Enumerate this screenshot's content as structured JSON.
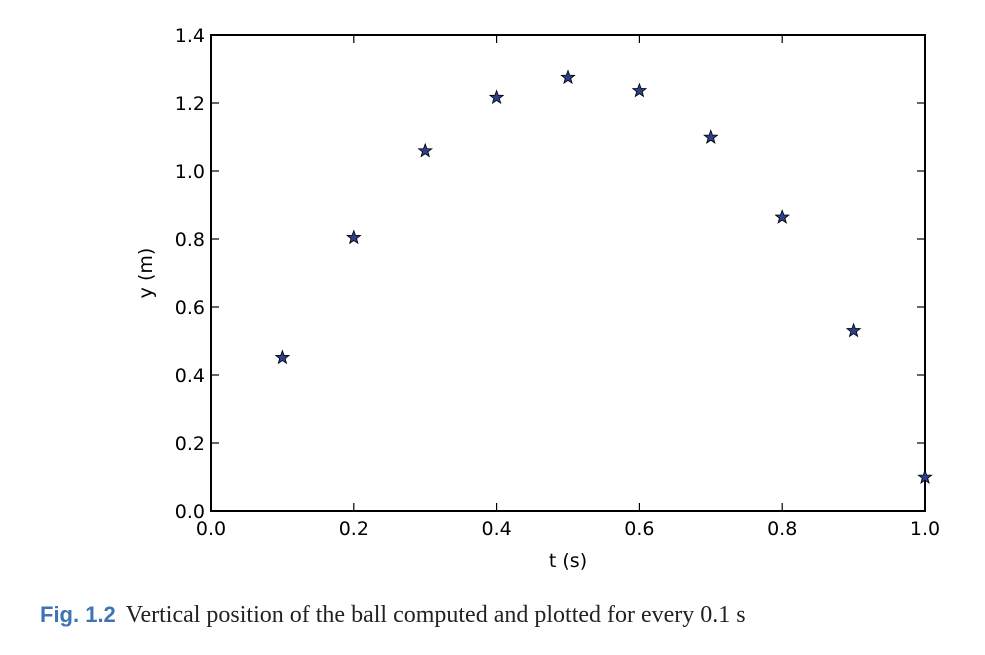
{
  "chart_data": {
    "type": "scatter",
    "title": "",
    "xlabel": "t (s)",
    "ylabel": "y (m)",
    "xlim": [
      0.0,
      1.0
    ],
    "ylim": [
      0.0,
      1.4
    ],
    "grid": false,
    "marker": "star",
    "marker_color": "#2b3f8a",
    "xticks": [
      "0.0",
      "0.2",
      "0.4",
      "0.6",
      "0.8",
      "1.0"
    ],
    "yticks": [
      "0.0",
      "0.2",
      "0.4",
      "0.6",
      "0.8",
      "1.0",
      "1.2",
      "1.4"
    ],
    "x": [
      0.1,
      0.2,
      0.3,
      0.4,
      0.5,
      0.6,
      0.7,
      0.8,
      0.9,
      1.0
    ],
    "y": [
      0.451,
      0.804,
      1.059,
      1.216,
      1.275,
      1.236,
      1.099,
      0.864,
      0.53,
      0.099
    ]
  },
  "caption": {
    "number": "Fig. 1.2",
    "text": "Vertical position of the ball computed and plotted for every 0.1 s"
  }
}
